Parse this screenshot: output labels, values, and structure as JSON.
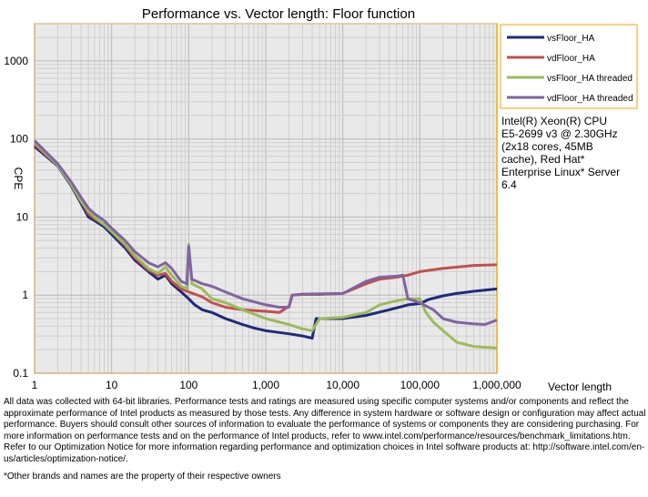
{
  "chart_data": {
    "type": "line",
    "title": "Performance vs. Vector length: Floor function",
    "xlabel": "Vector length",
    "ylabel": "CPE",
    "xscale": "log",
    "yscale": "log",
    "xlim": [
      1,
      1000000
    ],
    "ylim": [
      0.1,
      3000
    ],
    "grid": true,
    "legend_position": "right",
    "x_tick_labels": [
      "1",
      "10",
      "100",
      "1,000",
      "10,000",
      "100,000",
      "1,000,000"
    ],
    "y_tick_labels": [
      "0.1",
      "1",
      "10",
      "100",
      "1000"
    ],
    "annotation": "Intel(R) Xeon(R) CPU E5-2699 v3 @ 2.30GHz (2x18 cores, 45MB cache), Red Hat* Enterprise Linux* Server 6.4",
    "series": [
      {
        "name": "vsFloor_HA",
        "color": "#1f2a7a",
        "points": [
          [
            1,
            80
          ],
          [
            2,
            45
          ],
          [
            3,
            25
          ],
          [
            4,
            15
          ],
          [
            5,
            10
          ],
          [
            6,
            9
          ],
          [
            8,
            7.5
          ],
          [
            10,
            6
          ],
          [
            15,
            4
          ],
          [
            20,
            2.8
          ],
          [
            30,
            2
          ],
          [
            40,
            1.6
          ],
          [
            50,
            1.8
          ],
          [
            60,
            1.4
          ],
          [
            80,
            1.1
          ],
          [
            100,
            0.9
          ],
          [
            120,
            0.75
          ],
          [
            150,
            0.65
          ],
          [
            200,
            0.6
          ],
          [
            300,
            0.5
          ],
          [
            500,
            0.42
          ],
          [
            700,
            0.38
          ],
          [
            1000,
            0.35
          ],
          [
            2000,
            0.32
          ],
          [
            3000,
            0.3
          ],
          [
            4000,
            0.28
          ],
          [
            4500,
            0.5
          ],
          [
            6000,
            0.5
          ],
          [
            10000,
            0.5
          ],
          [
            20000,
            0.55
          ],
          [
            40000,
            0.65
          ],
          [
            60000,
            0.72
          ],
          [
            70000,
            0.75
          ],
          [
            100000,
            0.78
          ],
          [
            130000,
            0.88
          ],
          [
            200000,
            0.98
          ],
          [
            300000,
            1.05
          ],
          [
            500000,
            1.12
          ],
          [
            1000000,
            1.2
          ]
        ]
      },
      {
        "name": "vdFloor_HA",
        "color": "#c0504d",
        "points": [
          [
            1,
            85
          ],
          [
            2,
            46
          ],
          [
            3,
            26
          ],
          [
            4,
            16
          ],
          [
            5,
            11
          ],
          [
            6,
            9.5
          ],
          [
            8,
            8
          ],
          [
            10,
            6.5
          ],
          [
            15,
            4.3
          ],
          [
            20,
            3
          ],
          [
            30,
            2.1
          ],
          [
            40,
            1.8
          ],
          [
            50,
            1.9
          ],
          [
            60,
            1.5
          ],
          [
            80,
            1.2
          ],
          [
            100,
            1.1
          ],
          [
            150,
            0.95
          ],
          [
            200,
            0.8
          ],
          [
            300,
            0.7
          ],
          [
            500,
            0.65
          ],
          [
            1000,
            0.62
          ],
          [
            1500,
            0.6
          ],
          [
            2000,
            0.72
          ],
          [
            2200,
            1.0
          ],
          [
            3000,
            1.02
          ],
          [
            5000,
            1.02
          ],
          [
            10000,
            1.05
          ],
          [
            20000,
            1.4
          ],
          [
            30000,
            1.6
          ],
          [
            50000,
            1.7
          ],
          [
            70000,
            1.8
          ],
          [
            100000,
            2.0
          ],
          [
            200000,
            2.2
          ],
          [
            500000,
            2.4
          ],
          [
            1000000,
            2.45
          ]
        ]
      },
      {
        "name": "vsFloor_HA threaded",
        "color": "#9bbb59",
        "points": [
          [
            1,
            90
          ],
          [
            2,
            46
          ],
          [
            3,
            26
          ],
          [
            4,
            16
          ],
          [
            5,
            12
          ],
          [
            6,
            10
          ],
          [
            8,
            8
          ],
          [
            10,
            6.5
          ],
          [
            15,
            4.5
          ],
          [
            20,
            3.2
          ],
          [
            30,
            2.2
          ],
          [
            40,
            1.9
          ],
          [
            50,
            2.3
          ],
          [
            60,
            1.8
          ],
          [
            80,
            1.3
          ],
          [
            95,
            1.2
          ],
          [
            100,
            4.5
          ],
          [
            110,
            1.4
          ],
          [
            150,
            1.2
          ],
          [
            200,
            0.9
          ],
          [
            300,
            0.8
          ],
          [
            500,
            0.65
          ],
          [
            1000,
            0.5
          ],
          [
            2000,
            0.42
          ],
          [
            3000,
            0.37
          ],
          [
            4000,
            0.35
          ],
          [
            5000,
            0.5
          ],
          [
            10000,
            0.52
          ],
          [
            20000,
            0.6
          ],
          [
            30000,
            0.75
          ],
          [
            50000,
            0.85
          ],
          [
            70000,
            0.9
          ],
          [
            100000,
            0.9
          ],
          [
            120000,
            0.6
          ],
          [
            150000,
            0.45
          ],
          [
            200000,
            0.35
          ],
          [
            300000,
            0.25
          ],
          [
            500000,
            0.22
          ],
          [
            1000000,
            0.21
          ]
        ]
      },
      {
        "name": "vdFloor_HA threaded",
        "color": "#8064a2",
        "points": [
          [
            1,
            95
          ],
          [
            2,
            48
          ],
          [
            3,
            28
          ],
          [
            4,
            18
          ],
          [
            5,
            13
          ],
          [
            6,
            11
          ],
          [
            8,
            9
          ],
          [
            10,
            7.2
          ],
          [
            15,
            5
          ],
          [
            20,
            3.6
          ],
          [
            30,
            2.6
          ],
          [
            40,
            2.3
          ],
          [
            50,
            2.6
          ],
          [
            60,
            2.2
          ],
          [
            80,
            1.5
          ],
          [
            95,
            1.4
          ],
          [
            100,
            4.2
          ],
          [
            110,
            1.6
          ],
          [
            150,
            1.4
          ],
          [
            200,
            1.3
          ],
          [
            300,
            1.1
          ],
          [
            500,
            0.9
          ],
          [
            1000,
            0.75
          ],
          [
            1500,
            0.7
          ],
          [
            2000,
            0.7
          ],
          [
            2200,
            1.0
          ],
          [
            3000,
            1.03
          ],
          [
            10000,
            1.05
          ],
          [
            20000,
            1.5
          ],
          [
            30000,
            1.7
          ],
          [
            50000,
            1.75
          ],
          [
            60000,
            1.8
          ],
          [
            70000,
            0.9
          ],
          [
            100000,
            0.8
          ],
          [
            150000,
            0.65
          ],
          [
            200000,
            0.5
          ],
          [
            300000,
            0.45
          ],
          [
            500000,
            0.43
          ],
          [
            700000,
            0.42
          ],
          [
            1000000,
            0.48
          ]
        ]
      }
    ]
  },
  "footnote": "All data was collected with 64-bit libraries. Performance tests and ratings are measured using specific computer systems and/or components and reflect the approximate performance of Intel products as measured by those tests. Any difference in system hardware or software design or configuration may affect actual performance. Buyers should consult other sources of information to evaluate the performance of systems or components they are considering purchasing. For more information on performance tests and on the performance of Intel products, refer to www.intel.com/performance/resources/benchmark_limitations.htm. Refer to our Optimization Notice for more information regarding performance and optimization choices in Intel software products at: http://software.intel.com/en-us/articles/optimization-notice/.",
  "trademark": "*Other brands and names are the property of their respective owners"
}
